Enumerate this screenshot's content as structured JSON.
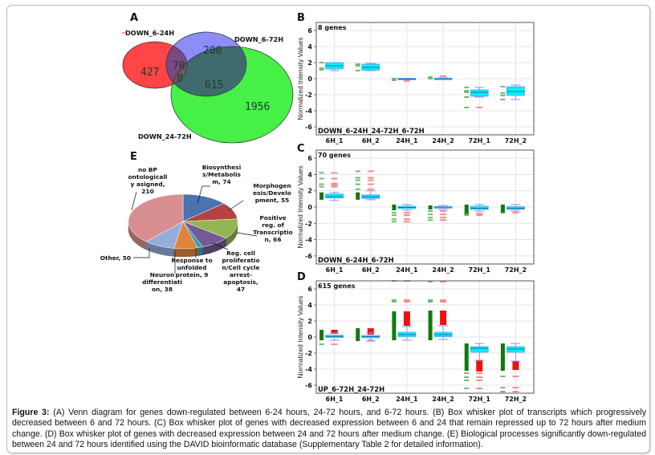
{
  "figure": {
    "caption_label": "Figure 3:",
    "caption_text": " (A) Venn diagram for genes down-regulated between 6-24 hours, 24-72 hours, and 6-72 hours. (B) Box whisker plot of transcripts which progressively decreased between 6 and 72 hours. (C) Box whisker plot of genes with decreased expression between 6 and 24 that remain repressed up to 72 hours after medium change. (D) Box whisker plot of genes with decreased expression between 24 and 72 hours after medium change. (E) Biological processes significantly down-regulated between 24 and 72 hours identified using the DAVID bioinformatic database (Supplementary Table 2 for detailed information).",
    "panel_letters": {
      "a": "A",
      "b": "B",
      "c": "C",
      "d": "D",
      "e": "E"
    }
  },
  "venn": {
    "sets": [
      {
        "id": "down_6_24",
        "label": "DOWN_6-24H",
        "color": "#ff3b3b"
      },
      {
        "id": "down_6_72",
        "label": "DOWN_6-72H",
        "color": "#3030f0"
      },
      {
        "id": "down_24_72",
        "label": "DOWN_24-72H",
        "color": "#33ee33"
      }
    ],
    "regions": {
      "only_6_24": "427",
      "only_6_72": "200",
      "only_24_72": "1956",
      "6_24_and_6_72": "70",
      "all_three": "8",
      "6_72_and_24_72": "615"
    }
  },
  "chart_data": [
    {
      "panel": "B",
      "type": "box",
      "title": "8 genes",
      "footer": "DOWN_6-24H_24-72H_6-72H",
      "ylabel": "Normalized Intensity Values",
      "ylim": [
        -7,
        7
      ],
      "yticks": [
        6,
        4,
        2,
        0,
        -2,
        -4,
        -6
      ],
      "grid": true,
      "categories": [
        "6H_1",
        "6H_2",
        "24H_1",
        "24H_2",
        "72H_1",
        "72H_2"
      ],
      "boxes": [
        {
          "min": 1.0,
          "q1": 1.2,
          "median": 1.6,
          "q3": 2.0,
          "max": 2.0,
          "outliers_green": [
            2.0,
            1.3,
            1.1
          ],
          "outliers_red": []
        },
        {
          "min": 1.0,
          "q1": 1.05,
          "median": 1.4,
          "q3": 1.8,
          "max": 1.9,
          "outliers_green": [
            1.8,
            1.6,
            1.0
          ],
          "outliers_red": []
        },
        {
          "min": -0.1,
          "q1": -0.1,
          "median": -0.05,
          "q3": 0.05,
          "max": 0.05,
          "outliers_green": [
            0.0,
            -0.2
          ],
          "outliers_red": [
            -0.3
          ]
        },
        {
          "min": -0.05,
          "q1": -0.05,
          "median": 0.0,
          "q3": 0.05,
          "max": 0.1,
          "outliers_green": [
            0.2,
            0.0
          ],
          "outliers_red": [
            0.3
          ]
        },
        {
          "min": -2.3,
          "q1": -2.2,
          "median": -1.7,
          "q3": -1.4,
          "max": -1.1,
          "outliers_green": [
            -1.1,
            -1.5,
            -1.7,
            -2.3,
            -3.6
          ],
          "outliers_red": [
            -3.6
          ]
        },
        {
          "min": -2.6,
          "q1": -2.1,
          "median": -1.6,
          "q3": -1.0,
          "max": -0.8,
          "outliers_green": [
            -1.0,
            -1.8,
            -2.1,
            -2.6
          ],
          "outliers_red": []
        }
      ]
    },
    {
      "panel": "C",
      "type": "box",
      "title": "70 genes",
      "footer": "DOWN_6-24H_6-72H",
      "ylabel": "Normalized Intensity Values",
      "ylim": [
        -7,
        7
      ],
      "yticks": [
        6,
        4,
        2,
        0,
        -2,
        -4,
        -6
      ],
      "grid": true,
      "categories": [
        "6H_1",
        "6H_2",
        "24H_1",
        "24H_2",
        "72H_1",
        "72H_2"
      ],
      "boxes": [
        {
          "min": 0.8,
          "q1": 1.1,
          "median": 1.3,
          "q3": 1.6,
          "max": 1.8,
          "outliers_green": [
            4.2,
            3.5,
            2.8,
            2.5
          ],
          "outliers_red": [
            4.2,
            3.5,
            2.9,
            2.7,
            2.5
          ],
          "green_bar": [
            0.9,
            1.8
          ]
        },
        {
          "min": 0.9,
          "q1": 1.05,
          "median": 1.25,
          "q3": 1.5,
          "max": 2.0,
          "outliers_green": [
            4.4,
            3.6,
            3.3,
            2.8,
            2.2
          ],
          "outliers_red": [
            4.4,
            3.6,
            3.3,
            2.8,
            2.2
          ],
          "green_bar": [
            0.9,
            1.8
          ]
        },
        {
          "min": -0.4,
          "q1": -0.2,
          "median": -0.05,
          "q3": 0.1,
          "max": 0.3,
          "outliers_green": [
            -0.7,
            -1.0,
            -1.5,
            -1.8
          ],
          "outliers_red": [
            -0.7,
            -1.0,
            -1.5,
            -1.8
          ],
          "green_bar": [
            -0.4,
            0.3
          ]
        },
        {
          "min": -0.3,
          "q1": -0.1,
          "median": 0.0,
          "q3": 0.05,
          "max": 0.2,
          "outliers_green": [
            -0.5,
            -0.9,
            -1.3,
            -1.6
          ],
          "outliers_red": [
            -0.5,
            -0.9,
            -1.3,
            -1.6
          ],
          "green_bar": [
            -0.3,
            0.2
          ]
        },
        {
          "min": -0.5,
          "q1": -0.3,
          "median": -0.15,
          "q3": 0.1,
          "max": 0.3,
          "outliers_green": [
            -0.8,
            -1.0
          ],
          "outliers_red": [
            -0.8,
            -1.0
          ],
          "green_bar": [
            -0.9,
            0.3
          ]
        },
        {
          "min": -0.5,
          "q1": -0.3,
          "median": -0.15,
          "q3": 0.05,
          "max": 0.3,
          "outliers_green": [
            -0.7
          ],
          "outliers_red": [
            -0.7
          ],
          "green_bar": [
            -0.7,
            0.3
          ]
        }
      ]
    },
    {
      "panel": "D",
      "type": "box",
      "title": "615 genes",
      "footer": "UP_6-72H_24-72H",
      "ylabel": "Normalized Intensity Values",
      "ylim": [
        -7,
        7
      ],
      "yticks": [
        6,
        4,
        2,
        0,
        -2,
        -4,
        -6
      ],
      "grid": true,
      "categories": [
        "6H_1",
        "6H_2",
        "24H_1",
        "24H_2",
        "72H_1",
        "72H_2"
      ],
      "boxes": [
        {
          "min": -0.4,
          "q1": -0.05,
          "median": 0.05,
          "q3": 0.25,
          "max": 0.5,
          "outliers_green": [
            -0.9
          ],
          "outliers_red": [
            -0.9
          ],
          "green_bar": [
            -0.4,
            0.9
          ],
          "red_bar": [
            0.4,
            0.9
          ]
        },
        {
          "min": -0.5,
          "q1": -0.1,
          "median": 0.05,
          "q3": 0.2,
          "max": 0.5,
          "outliers_green": [],
          "outliers_red": [
            -0.4
          ],
          "green_bar": [
            -0.5,
            1.1
          ],
          "red_bar": [
            0.3,
            1.1
          ]
        },
        {
          "min": -0.4,
          "q1": 0.05,
          "median": 0.3,
          "q3": 0.6,
          "max": 1.3,
          "outliers_green": [
            7.0,
            4.6,
            4.4
          ],
          "outliers_red": [
            7.0,
            4.6,
            4.4
          ],
          "green_bar": [
            -0.4,
            3.2
          ],
          "red_bar": [
            1.4,
            3.2
          ]
        },
        {
          "min": -0.3,
          "q1": 0.05,
          "median": 0.3,
          "q3": 0.6,
          "max": 1.4,
          "outliers_green": [
            6.9,
            4.6,
            4.4
          ],
          "outliers_red": [
            6.9,
            4.6,
            4.4
          ],
          "green_bar": [
            -0.4,
            3.3
          ],
          "red_bar": [
            1.5,
            3.3
          ]
        },
        {
          "min": -2.9,
          "q1": -1.9,
          "median": -1.4,
          "q3": -1.2,
          "max": -0.8,
          "outliers_green": [
            -4.5,
            -5.0,
            -5.4,
            -6.4
          ],
          "outliers_red": [
            -4.5,
            -5.0,
            -5.4,
            -6.4
          ],
          "green_bar": [
            -4.2,
            -0.8
          ],
          "red_bar": [
            -4.3,
            -2.9
          ]
        },
        {
          "min": -3.0,
          "q1": -1.9,
          "median": -1.5,
          "q3": -1.2,
          "max": -0.8,
          "outliers_green": [
            -4.9,
            -6.3,
            -6.8
          ],
          "outliers_red": [
            -4.9,
            -6.3,
            -6.8
          ],
          "green_bar": [
            -4.2,
            -0.8
          ],
          "red_bar": [
            -4.1,
            -3.0
          ]
        }
      ]
    },
    {
      "panel": "E",
      "type": "pie",
      "title": "",
      "slices": [
        {
          "label": "Biosynthesis/Metabolism",
          "display": [
            "Biosynthesi",
            "s/Metabolis",
            "m, 74"
          ],
          "value": 74,
          "color": "#4a73b0"
        },
        {
          "label": "Morphogenesis/Development",
          "display": [
            "Morphogen",
            "esis/Develo",
            "pment, 55"
          ],
          "value": 55,
          "color": "#b34242"
        },
        {
          "label": "Positive reg. of Transcription",
          "display": [
            "Positive",
            "reg. of",
            "Transcriptio",
            "n, 66"
          ],
          "value": 66,
          "color": "#93b552"
        },
        {
          "label": "Reg. cell proliferation/Cell cycle arrest-apoptosis",
          "display": [
            "Reg. cell",
            "proliferatio",
            "n/Cell cycle",
            "arrest-",
            "apoptosis,",
            "47"
          ],
          "value": 47,
          "color": "#735996"
        },
        {
          "label": "Response to unfolded protein",
          "display": [
            "Response to",
            "unfolded",
            "protein, 9"
          ],
          "value": 9,
          "color": "#3a9fb6"
        },
        {
          "label": "Neuron differentiation",
          "display": [
            "Neuron",
            "differentiati",
            "on, 38"
          ],
          "value": 38,
          "color": "#e0843a"
        },
        {
          "label": "Other",
          "display": [
            "Other, 50"
          ],
          "value": 50,
          "color": "#94aedb"
        },
        {
          "label": "no BP ontologically asigned",
          "display": [
            "no BP",
            "ontologicall",
            "y asigned,",
            "210"
          ],
          "value": 210,
          "color": "#d98f8f"
        }
      ]
    }
  ]
}
